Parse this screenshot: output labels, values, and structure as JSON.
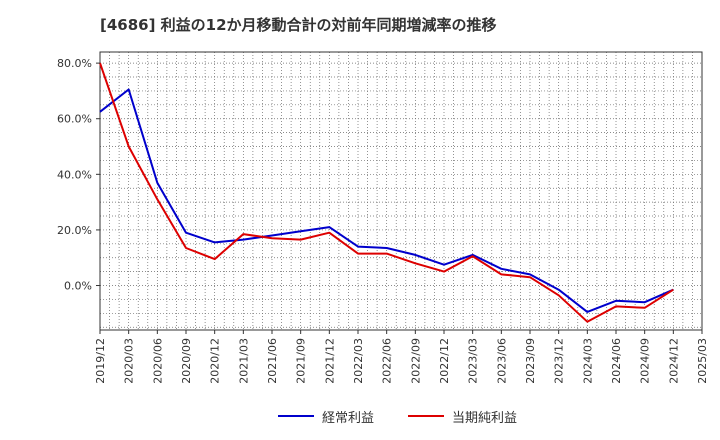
{
  "chart_data": {
    "type": "line",
    "title": "[4686]  利益の12か月移動合計の対前年同期増減率の推移",
    "xlabel": "",
    "ylabel": "",
    "ylim": [
      -16,
      84
    ],
    "yticks": [
      0,
      20,
      40,
      60,
      80
    ],
    "ytick_labels": [
      "0.0%",
      "20.0%",
      "40.0%",
      "60.0%",
      "80.0%"
    ],
    "categories": [
      "2019/12",
      "2020/03",
      "2020/06",
      "2020/09",
      "2020/12",
      "2021/03",
      "2021/06",
      "2021/09",
      "2021/12",
      "2022/03",
      "2022/06",
      "2022/09",
      "2022/12",
      "2023/03",
      "2023/06",
      "2023/09",
      "2023/12",
      "2024/03",
      "2024/06",
      "2024/09",
      "2024/12",
      "2025/03"
    ],
    "grid": true,
    "legend_position": "bottom",
    "series": [
      {
        "name": "経常利益",
        "color": "#0000cc",
        "values": [
          62.5,
          70.5,
          37,
          19,
          15.5,
          16.5,
          18,
          19.5,
          21,
          14,
          13.5,
          11,
          7.5,
          11,
          6,
          4,
          -1.5,
          -9.5,
          -5.5,
          -6,
          -1.5,
          null
        ]
      },
      {
        "name": "当期純利益",
        "color": "#dd0000",
        "values": [
          80,
          50,
          31,
          13.5,
          9.5,
          18.5,
          17,
          16.5,
          19,
          11.5,
          11.5,
          8,
          5,
          10.5,
          4,
          3,
          -3.5,
          -13,
          -7.5,
          -8,
          -1.5,
          null
        ]
      }
    ]
  }
}
